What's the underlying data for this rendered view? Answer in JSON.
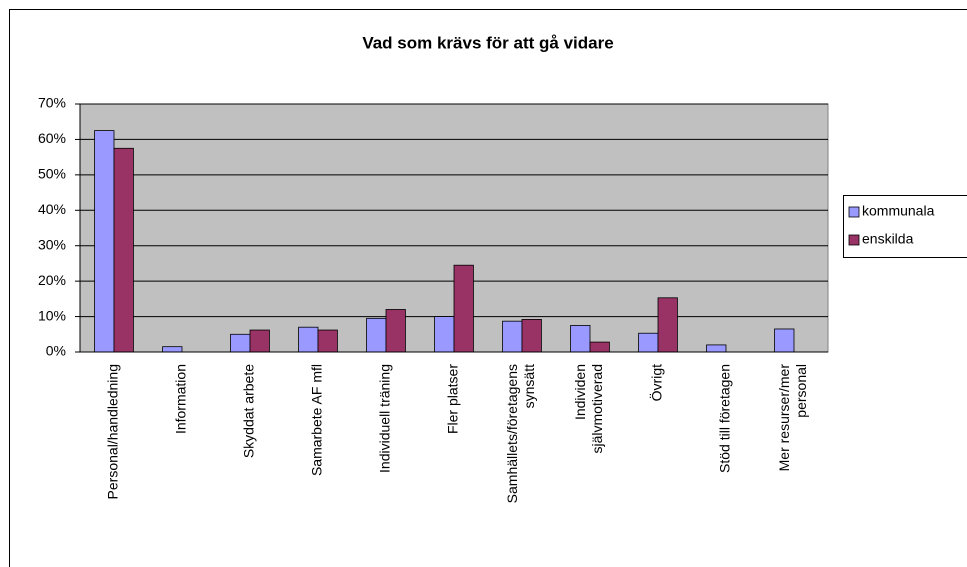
{
  "chart_data": {
    "type": "bar",
    "title": "Vad som krävs för att gå vidare",
    "categories": [
      [
        "Personal/handledning"
      ],
      [
        "Information"
      ],
      [
        "Skyddat arbete"
      ],
      [
        "Samarbete AF mfl"
      ],
      [
        "Individuell träning"
      ],
      [
        "Fler platser"
      ],
      [
        "Samhällets/företagens",
        "synsätt"
      ],
      [
        "Individen",
        "självmotiverad"
      ],
      [
        "Övrigt"
      ],
      [
        "Stöd till företagen"
      ],
      [
        "Mer resurser/mer",
        "personal"
      ]
    ],
    "series": [
      {
        "name": "kommunala",
        "color": "#9999ff",
        "values": [
          62.5,
          1.5,
          5,
          7,
          9.5,
          10,
          8.7,
          7.5,
          5.3,
          2,
          6.5
        ]
      },
      {
        "name": "enskilda",
        "color": "#993366",
        "values": [
          57.5,
          0,
          6.2,
          6.2,
          12,
          24.5,
          9.2,
          2.8,
          15.3,
          0,
          0
        ]
      }
    ],
    "ylim": [
      0,
      70
    ],
    "yticks": [
      {
        "value": 0,
        "label": "0%"
      },
      {
        "value": 10,
        "label": "10%"
      },
      {
        "value": 20,
        "label": "20%"
      },
      {
        "value": 30,
        "label": "30%"
      },
      {
        "value": 40,
        "label": "40%"
      },
      {
        "value": 50,
        "label": "50%"
      },
      {
        "value": 60,
        "label": "60%"
      },
      {
        "value": 70,
        "label": "70%"
      }
    ],
    "grid": true,
    "legend": "right"
  }
}
